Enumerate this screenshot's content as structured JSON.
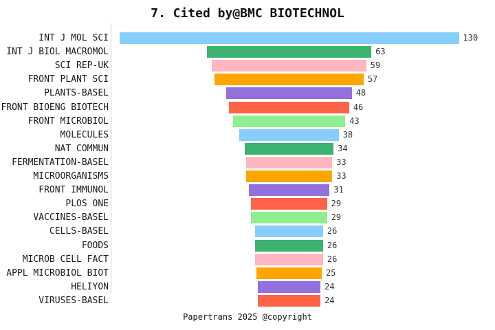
{
  "title": "7. Cited by@BMC BIOTECHNOL",
  "footer": "Papertrans 2025 @copyright",
  "chart_data": {
    "type": "bar",
    "orientation": "horizontal",
    "style": "centered-funnel-bars",
    "title": "7. Cited by@BMC BIOTECHNOL",
    "xlabel": "",
    "ylabel": "",
    "xlim": [
      0,
      130
    ],
    "grid": false,
    "legend": false,
    "value_labels_shown": true,
    "categories": [
      "INT J MOL SCI",
      "INT J BIOL MACROMOL",
      "SCI REP-UK",
      "FRONT PLANT SCI",
      "PLANTS-BASEL",
      "FRONT BIOENG BIOTECH",
      "FRONT MICROBIOL",
      "MOLECULES",
      "NAT COMMUN",
      "FERMENTATION-BASEL",
      "MICROORGANISMS",
      "FRONT IMMUNOL",
      "PLOS ONE",
      "VACCINES-BASEL",
      "CELLS-BASEL",
      "FOODS",
      "MICROB CELL FACT",
      "APPL MICROBIOL BIOT",
      "HELIYON",
      "VIRUSES-BASEL"
    ],
    "values": [
      130,
      63,
      59,
      57,
      48,
      46,
      43,
      38,
      34,
      33,
      33,
      31,
      29,
      29,
      26,
      26,
      26,
      25,
      24,
      24
    ],
    "bar_colors_cycle": [
      "#87CEFA",
      "#3CB371",
      "#FFB6C1",
      "#FFA500",
      "#9370DB",
      "#FF6347",
      "#90EE90"
    ],
    "axis_line_color": "#cfcfcf",
    "background_color": "#ffffff",
    "text_color": "#1a1a1a"
  }
}
